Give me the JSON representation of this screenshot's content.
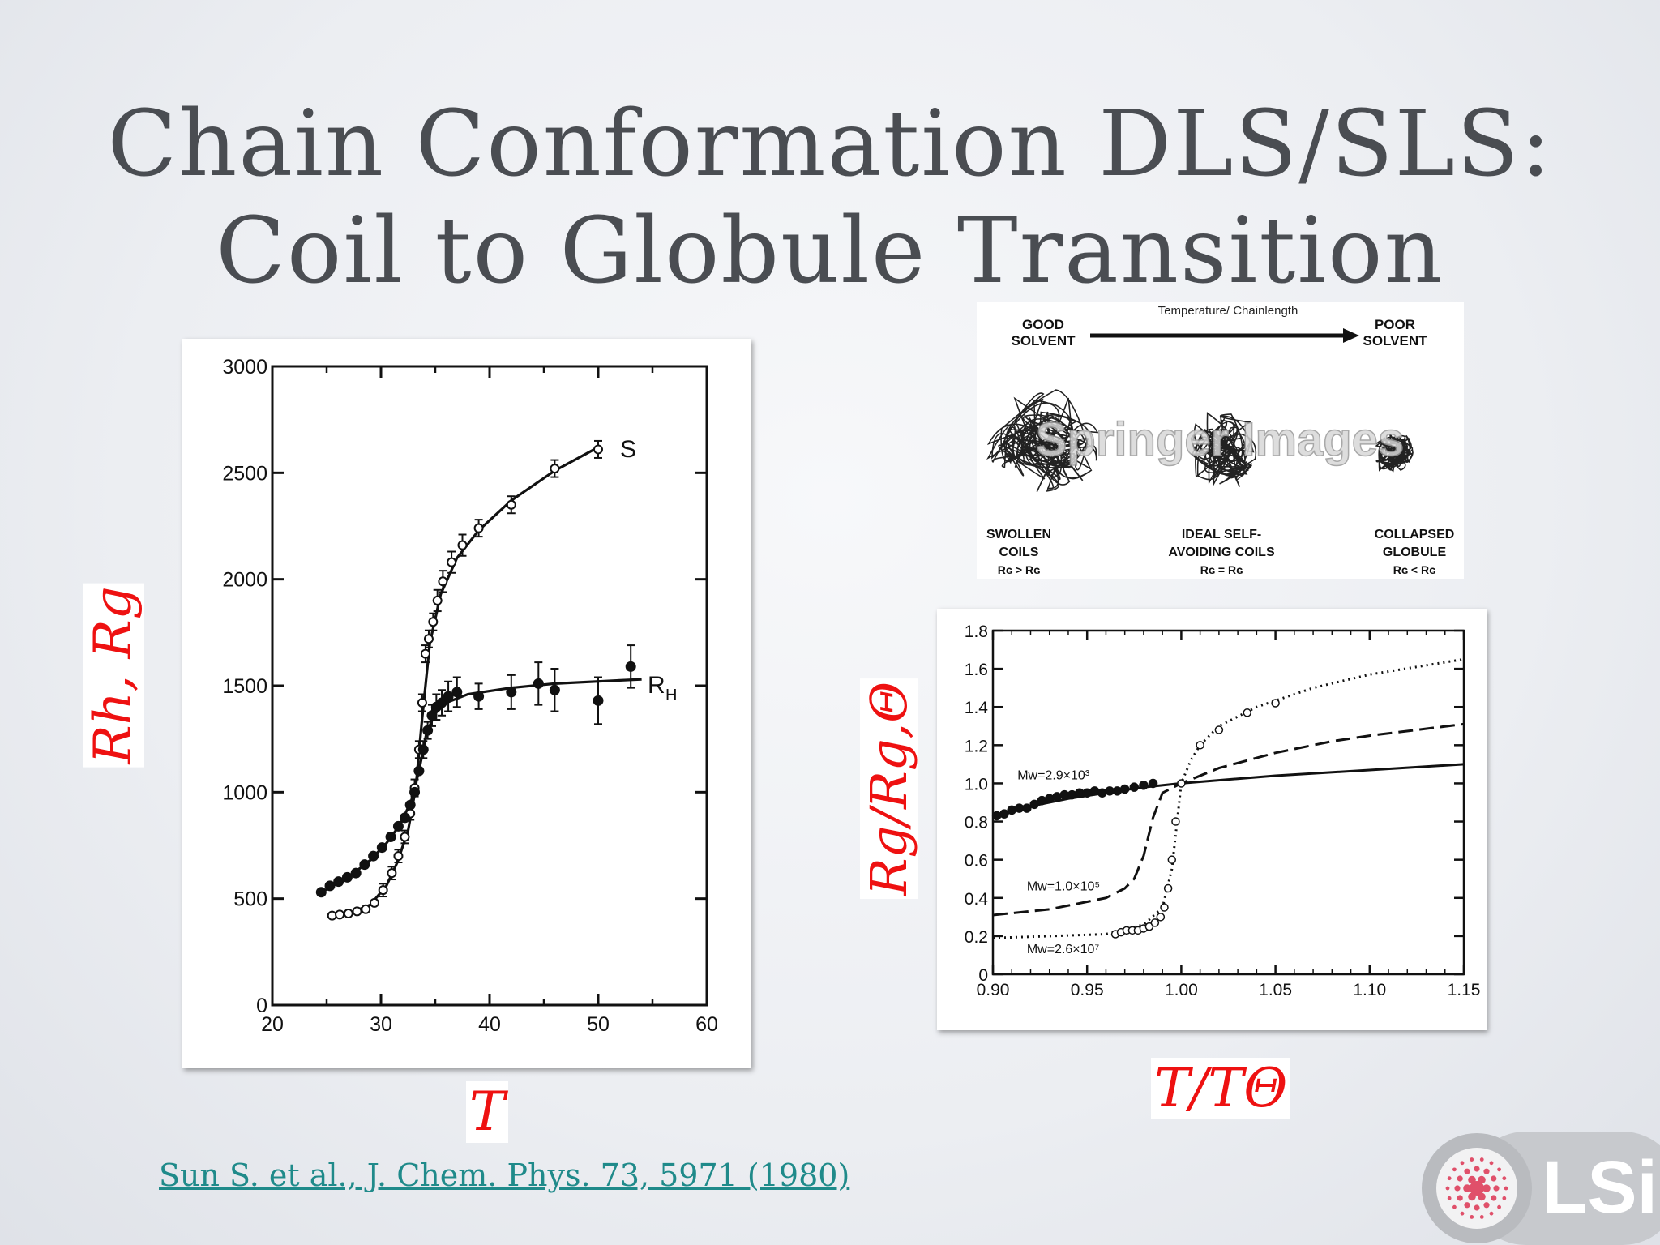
{
  "slide": {
    "title_line1": "Chain Conformation DLS/SLS:",
    "title_line2": "Coil to Globule Transition",
    "citation": "Sun S. et al., J. Chem. Phys. 73, 5971 (1980)",
    "labels": {
      "left_y": "Rh, Rg",
      "left_x": "T",
      "right_y": "Rg/Rg,Θ",
      "right_x": "T/TΘ"
    },
    "logo_text": "LSi",
    "colors": {
      "label_red": "#ee1111",
      "citation_teal": "#1f8a8a",
      "title_gray": "#4a4d52",
      "logo_pink": "#e0506a"
    }
  },
  "schematic": {
    "arrow_label": "Temperature/ Chainlength",
    "left_state": [
      "GOOD",
      "SOLVENT"
    ],
    "right_state": [
      "POOR",
      "SOLVENT"
    ],
    "watermark": "Springer Images",
    "captions": [
      {
        "lines": [
          "SWOLLEN",
          "COILS",
          "Rɢ > Rɢ"
        ]
      },
      {
        "lines": [
          "IDEAL SELF-",
          "AVOIDING COILS",
          "Rɢ = Rɢ"
        ]
      },
      {
        "lines": [
          "COLLAPSED",
          "GLOBULE",
          "Rɢ < Rɢ"
        ]
      }
    ]
  },
  "chart_data": [
    {
      "type": "scatter",
      "xlim": [
        20,
        60
      ],
      "ylim": [
        0,
        3000
      ],
      "xticks": [
        20,
        30,
        40,
        50,
        60
      ],
      "yticks": [
        0,
        500,
        1000,
        1500,
        2000,
        2500,
        3000
      ],
      "series": [
        {
          "name": "S",
          "marker": "open-circle",
          "x": [
            25.5,
            26.2,
            27,
            27.8,
            28.6,
            29.4,
            30.2,
            31,
            31.6,
            32.2,
            32.7,
            33.1,
            33.5,
            33.8,
            34.1,
            34.4,
            34.8,
            35.2,
            35.7,
            36.5,
            37.5,
            39,
            42,
            46,
            50
          ],
          "y": [
            420,
            425,
            430,
            440,
            450,
            480,
            540,
            620,
            700,
            790,
            900,
            1020,
            1200,
            1420,
            1650,
            1720,
            1800,
            1900,
            1990,
            2080,
            2160,
            2240,
            2350,
            2520,
            2610
          ],
          "errors": [
            0,
            0,
            0,
            0,
            0,
            0,
            30,
            30,
            30,
            30,
            30,
            40,
            40,
            40,
            40,
            40,
            40,
            50,
            50,
            50,
            50,
            40,
            40,
            40,
            40
          ]
        },
        {
          "name": "R",
          "name_sub": "H",
          "marker": "filled-circle",
          "x": [
            24.5,
            25.3,
            26.1,
            26.9,
            27.7,
            28.5,
            29.3,
            30.1,
            30.9,
            31.6,
            32.2,
            32.7,
            33.1,
            33.5,
            33.9,
            34.3,
            34.7,
            35.1,
            35.6,
            36.2,
            37,
            39,
            42,
            44.5,
            46,
            50,
            53
          ],
          "y": [
            530,
            560,
            580,
            600,
            620,
            660,
            700,
            740,
            790,
            840,
            880,
            940,
            1000,
            1100,
            1200,
            1290,
            1360,
            1400,
            1420,
            1450,
            1470,
            1450,
            1470,
            1510,
            1480,
            1430,
            1590
          ],
          "errors": [
            0,
            0,
            0,
            0,
            0,
            0,
            0,
            0,
            0,
            0,
            0,
            0,
            0,
            0,
            40,
            40,
            50,
            60,
            60,
            70,
            70,
            60,
            80,
            100,
            100,
            110,
            100
          ]
        }
      ],
      "fits": [
        {
          "name": "S",
          "x": [
            25.5,
            27,
            29,
            30.5,
            31.5,
            32.5,
            33.2,
            33.8,
            34.5,
            35.5,
            37,
            39,
            42,
            46,
            50
          ],
          "y": [
            420,
            430,
            470,
            560,
            670,
            820,
            1020,
            1350,
            1700,
            1930,
            2100,
            2230,
            2370,
            2510,
            2620
          ]
        },
        {
          "name": "RH",
          "x": [
            24.5,
            27,
            29,
            30.5,
            31.8,
            32.8,
            33.5,
            34.2,
            35,
            36,
            38,
            42,
            46,
            50,
            54
          ],
          "y": [
            530,
            600,
            680,
            760,
            850,
            960,
            1100,
            1280,
            1370,
            1420,
            1460,
            1490,
            1510,
            1520,
            1530
          ]
        }
      ]
    },
    {
      "type": "line",
      "xlim": [
        0.9,
        1.15
      ],
      "ylim": [
        0,
        1.8
      ],
      "xticks": [
        "0.90",
        "0.95",
        "1.00",
        "1.05",
        "1.10",
        "1.15"
      ],
      "yticks": [
        "0",
        "0.2",
        "0.4",
        "0.6",
        "0.8",
        "1.0",
        "1.2",
        "1.4",
        "1.6",
        "1.8"
      ],
      "series": [
        {
          "name": "Mw=2.9×10³",
          "style": "solid",
          "x": [
            0.9,
            0.92,
            0.94,
            0.96,
            0.98,
            1.0,
            1.05,
            1.1,
            1.15
          ],
          "y": [
            0.82,
            0.88,
            0.92,
            0.95,
            0.98,
            1.0,
            1.04,
            1.07,
            1.1
          ],
          "points_x": [
            0.902,
            0.906,
            0.91,
            0.914,
            0.918,
            0.922,
            0.926,
            0.93,
            0.934,
            0.938,
            0.942,
            0.946,
            0.95,
            0.954,
            0.958,
            0.962,
            0.966,
            0.97,
            0.975,
            0.98,
            0.985
          ],
          "points_y": [
            0.83,
            0.84,
            0.86,
            0.87,
            0.87,
            0.89,
            0.91,
            0.92,
            0.93,
            0.94,
            0.94,
            0.95,
            0.95,
            0.96,
            0.95,
            0.96,
            0.96,
            0.97,
            0.98,
            0.99,
            1.0
          ]
        },
        {
          "name": "Mw=1.0×10⁵",
          "style": "dashed",
          "x": [
            0.9,
            0.93,
            0.96,
            0.97,
            0.975,
            0.98,
            0.985,
            0.99,
            1.0,
            1.02,
            1.05,
            1.08,
            1.1,
            1.15
          ],
          "y": [
            0.31,
            0.34,
            0.4,
            0.45,
            0.5,
            0.62,
            0.82,
            0.95,
            1.0,
            1.08,
            1.16,
            1.22,
            1.25,
            1.31
          ]
        },
        {
          "name": "Mw=2.6×10⁷",
          "style": "dotted",
          "x": [
            0.9,
            0.93,
            0.96,
            0.98,
            0.99,
            0.995,
            1.0,
            1.005,
            1.01,
            1.02,
            1.04,
            1.07,
            1.1,
            1.15
          ],
          "y": [
            0.19,
            0.2,
            0.21,
            0.26,
            0.35,
            0.55,
            1.0,
            1.12,
            1.2,
            1.3,
            1.4,
            1.5,
            1.57,
            1.65
          ],
          "points_x": [
            0.965,
            0.968,
            0.971,
            0.974,
            0.977,
            0.98,
            0.983,
            0.986,
            0.989,
            0.991,
            0.993,
            0.995,
            0.997,
            1.0,
            1.01,
            1.02,
            1.035,
            1.05
          ],
          "points_y": [
            0.21,
            0.22,
            0.23,
            0.23,
            0.23,
            0.24,
            0.25,
            0.27,
            0.3,
            0.35,
            0.45,
            0.6,
            0.8,
            1.0,
            1.2,
            1.28,
            1.37,
            1.42
          ]
        }
      ]
    }
  ]
}
